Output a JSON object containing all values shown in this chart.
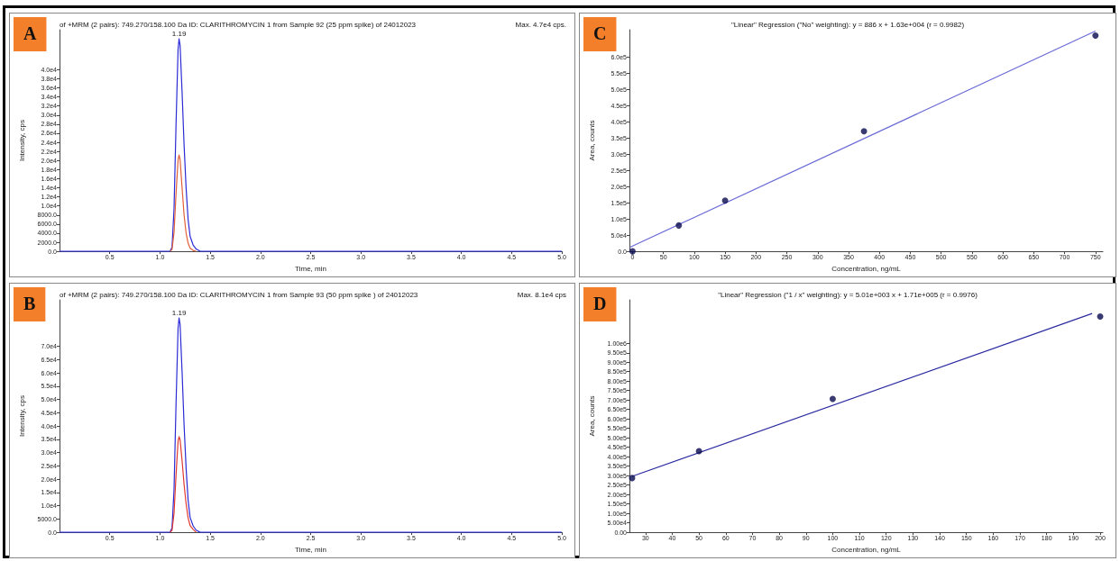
{
  "chart_data": [
    {
      "type": "line",
      "title": "of +MRM (2 pairs): 749.270/158.100 Da ID: CLARITHROMYCIN 1 from Sample 92 (25 ppm spike) of 24012023",
      "xlabel": "Time, min",
      "ylabel": "Intensity, cps",
      "annotations": [
        "A",
        "Max. 4.7e4 cps.",
        {
          "text": "1.19",
          "x": 1.19,
          "y": 46800
        }
      ],
      "marker": "none",
      "xlim": [
        0,
        5
      ],
      "ylim": [
        0,
        48800
      ],
      "xticks": [
        {
          "value": 0.5,
          "label": "0.5"
        },
        {
          "value": 1,
          "label": "1.0"
        },
        {
          "value": 1.5,
          "label": "1.5"
        },
        {
          "value": 2,
          "label": "2.0"
        },
        {
          "value": 2.5,
          "label": "2.5"
        },
        {
          "value": 3,
          "label": "3.0"
        },
        {
          "value": 3.5,
          "label": "3.5"
        },
        {
          "value": 4,
          "label": "4.0"
        },
        {
          "value": 4.5,
          "label": "4.5"
        },
        {
          "value": 5,
          "label": "5.0"
        }
      ],
      "yticks": [
        {
          "value": 0,
          "label": "0.0"
        },
        {
          "value": 2000,
          "label": "2000.0"
        },
        {
          "value": 4000,
          "label": "4000.0"
        },
        {
          "value": 6000,
          "label": "6000.0"
        },
        {
          "value": 8000,
          "label": "8000.0"
        },
        {
          "value": 10000,
          "label": "1.0e4"
        },
        {
          "value": 12000,
          "label": "1.2e4"
        },
        {
          "value": 14000,
          "label": "1.4e4"
        },
        {
          "value": 16000,
          "label": "1.6e4"
        },
        {
          "value": 18000,
          "label": "1.8e4"
        },
        {
          "value": 20000,
          "label": "2.0e4"
        },
        {
          "value": 22000,
          "label": "2.2e4"
        },
        {
          "value": 24000,
          "label": "2.4e4"
        },
        {
          "value": 26000,
          "label": "2.6e4"
        },
        {
          "value": 28000,
          "label": "2.8e4"
        },
        {
          "value": 30000,
          "label": "3.0e4"
        },
        {
          "value": 32000,
          "label": "3.2e4"
        },
        {
          "value": 34000,
          "label": "3.4e4"
        },
        {
          "value": 36000,
          "label": "3.6e4"
        },
        {
          "value": 38000,
          "label": "3.8e4"
        },
        {
          "value": 40000,
          "label": "4.0e4"
        }
      ],
      "series": [
        {
          "color": "#2b2bd6",
          "x": [
            0,
            1.1,
            1.12,
            1.14,
            1.16,
            1.18,
            1.19,
            1.2,
            1.22,
            1.24,
            1.26,
            1.28,
            1.3,
            1.33,
            1.36,
            1.4,
            5.0
          ],
          "values": [
            0,
            0,
            900,
            9400,
            28000,
            44500,
            46800,
            45400,
            35100,
            23400,
            14000,
            7000,
            3300,
            1400,
            500,
            0,
            0
          ]
        },
        {
          "color": "#e0603a",
          "x": [
            1.1,
            1.12,
            1.14,
            1.16,
            1.18,
            1.19,
            1.2,
            1.22,
            1.24,
            1.26,
            1.28,
            1.3,
            1.33,
            1.36
          ],
          "values": [
            0,
            400,
            4200,
            12700,
            20100,
            21200,
            20200,
            14000,
            8000,
            4000,
            1800,
            700,
            200,
            0
          ]
        }
      ]
    },
    {
      "type": "scatter",
      "title": "\"Linear\" Regression (\"No\" weighting): y = 886 x + 1.63e+004 (r = 0.9982)",
      "xlabel": "Concentration, ng/mL",
      "ylabel": "Area, counts",
      "annotations": [
        "C"
      ],
      "marker": "circle",
      "xlim": [
        -5,
        762
      ],
      "ylim": [
        0,
        685000
      ],
      "xticks": [
        0,
        50,
        100,
        150,
        200,
        250,
        300,
        350,
        400,
        450,
        500,
        550,
        600,
        650,
        700,
        750
      ],
      "yticks": [
        {
          "value": 0,
          "label": "0.0"
        },
        {
          "value": 50000,
          "label": "5.0e4"
        },
        {
          "value": 100000,
          "label": "1.0e5"
        },
        {
          "value": 150000,
          "label": "1.5e5"
        },
        {
          "value": 200000,
          "label": "2.0e5"
        },
        {
          "value": 250000,
          "label": "2.5e5"
        },
        {
          "value": 300000,
          "label": "3.0e5"
        },
        {
          "value": 350000,
          "label": "3.5e5"
        },
        {
          "value": 400000,
          "label": "4.0e5"
        },
        {
          "value": 450000,
          "label": "4.5e5"
        },
        {
          "value": 500000,
          "label": "5.0e5"
        },
        {
          "value": 550000,
          "label": "5.5e5"
        },
        {
          "value": 600000,
          "label": "6.0e5"
        }
      ],
      "series": [
        {
          "type": "line",
          "marker": "none",
          "color": "#6a6ad8",
          "x": [
            -4,
            750
          ],
          "values": [
            12800,
            681000
          ]
        },
        {
          "type": "scatter",
          "color": "#0a0a50",
          "x": [
            0,
            75,
            150,
            375,
            750
          ],
          "values": [
            0,
            80000,
            157000,
            371000,
            667000
          ]
        }
      ]
    },
    {
      "type": "line",
      "title": "of +MRM (2 pairs): 749.270/158.100 Da ID: CLARITHROMYCIN 1 from Sample 93 (50 ppm spike ) of 24012023",
      "xlabel": "Time, min",
      "ylabel": "Intensity, cps",
      "annotations": [
        "B",
        "Max. 8.1e4 cps",
        {
          "text": "1.19",
          "x": 1.19,
          "y": 80700
        }
      ],
      "marker": "none",
      "xlim": [
        0,
        5
      ],
      "ylim": [
        0,
        87500
      ],
      "xticks": [
        {
          "value": 0.5,
          "label": "0.5"
        },
        {
          "value": 1,
          "label": "1.0"
        },
        {
          "value": 1.5,
          "label": "1.5"
        },
        {
          "value": 2,
          "label": "2.0"
        },
        {
          "value": 2.5,
          "label": "2.5"
        },
        {
          "value": 3,
          "label": "3.0"
        },
        {
          "value": 3.5,
          "label": "3.5"
        },
        {
          "value": 4,
          "label": "4.0"
        },
        {
          "value": 4.5,
          "label": "4.5"
        },
        {
          "value": 5,
          "label": "5.0"
        }
      ],
      "yticks": [
        {
          "value": 0,
          "label": "0.0"
        },
        {
          "value": 5000,
          "label": "5000.0"
        },
        {
          "value": 10000,
          "label": "1.0e4"
        },
        {
          "value": 15000,
          "label": "1.5e4"
        },
        {
          "value": 20000,
          "label": "2.0e4"
        },
        {
          "value": 25000,
          "label": "2.5e4"
        },
        {
          "value": 30000,
          "label": "3.0e4"
        },
        {
          "value": 35000,
          "label": "3.5e4"
        },
        {
          "value": 40000,
          "label": "4.0e4"
        },
        {
          "value": 45000,
          "label": "4.5e4"
        },
        {
          "value": 50000,
          "label": "5.0e4"
        },
        {
          "value": 55000,
          "label": "5.5e4"
        },
        {
          "value": 60000,
          "label": "6.0e4"
        },
        {
          "value": 65000,
          "label": "6.5e4"
        },
        {
          "value": 70000,
          "label": "7.0e4"
        }
      ],
      "series": [
        {
          "color": "#2b2bd6",
          "x": [
            0,
            1.1,
            1.12,
            1.14,
            1.16,
            1.18,
            1.19,
            1.2,
            1.22,
            1.24,
            1.26,
            1.28,
            1.3,
            1.33,
            1.36,
            1.4,
            5.0
          ],
          "values": [
            0,
            0,
            1600,
            16100,
            48400,
            76700,
            80700,
            78300,
            60500,
            40400,
            24200,
            12100,
            5600,
            2400,
            800,
            0,
            0
          ]
        },
        {
          "color": "#e03a30",
          "x": [
            1.1,
            1.12,
            1.14,
            1.16,
            1.18,
            1.19,
            1.2,
            1.22,
            1.24,
            1.26,
            1.28,
            1.3,
            1.33,
            1.36
          ],
          "values": [
            0,
            700,
            7200,
            21600,
            34200,
            36000,
            34900,
            27000,
            18000,
            10800,
            5400,
            2500,
            1100,
            0
          ]
        }
      ]
    },
    {
      "type": "scatter",
      "title": "\"Linear\" Regression (\"1 / x\" weighting): y = 5.01e+003 x + 1.71e+005 (r = 0.9976)",
      "xlabel": "Concentration, ng/mL",
      "ylabel": "Area, counts",
      "annotations": [
        "D"
      ],
      "marker": "circle",
      "xlim": [
        24,
        201
      ],
      "ylim": [
        0,
        1230000
      ],
      "xticks": [
        30,
        40,
        50,
        60,
        70,
        80,
        90,
        100,
        110,
        120,
        130,
        140,
        150,
        160,
        170,
        180,
        190,
        200
      ],
      "yticks": [
        {
          "value": 0,
          "label": "0.00"
        },
        {
          "value": 50000,
          "label": "5.00e4"
        },
        {
          "value": 100000,
          "label": "1.00e5"
        },
        {
          "value": 150000,
          "label": "1.50e5"
        },
        {
          "value": 200000,
          "label": "2.00e5"
        },
        {
          "value": 250000,
          "label": "2.50e5"
        },
        {
          "value": 300000,
          "label": "3.00e5"
        },
        {
          "value": 350000,
          "label": "3.50e5"
        },
        {
          "value": 400000,
          "label": "4.00e5"
        },
        {
          "value": 450000,
          "label": "4.50e5"
        },
        {
          "value": 500000,
          "label": "5.00e5"
        },
        {
          "value": 550000,
          "label": "5.50e5"
        },
        {
          "value": 600000,
          "label": "6.00e5"
        },
        {
          "value": 650000,
          "label": "6.50e5"
        },
        {
          "value": 700000,
          "label": "7.00e5"
        },
        {
          "value": 750000,
          "label": "7.50e5"
        },
        {
          "value": 800000,
          "label": "8.00e5"
        },
        {
          "value": 850000,
          "label": "8.50e5"
        },
        {
          "value": 900000,
          "label": "9.00e5"
        },
        {
          "value": 950000,
          "label": "9.50e5"
        },
        {
          "value": 1000000,
          "label": "1.00e6"
        }
      ],
      "series": [
        {
          "type": "line",
          "marker": "none",
          "color": "#2a2aa0",
          "x": [
            25,
            197
          ],
          "values": [
            296000,
            1158000
          ]
        },
        {
          "type": "scatter",
          "color": "#0a0a50",
          "x": [
            25,
            50,
            100,
            200
          ],
          "values": [
            287000,
            429000,
            706000,
            1142000
          ]
        }
      ]
    }
  ]
}
